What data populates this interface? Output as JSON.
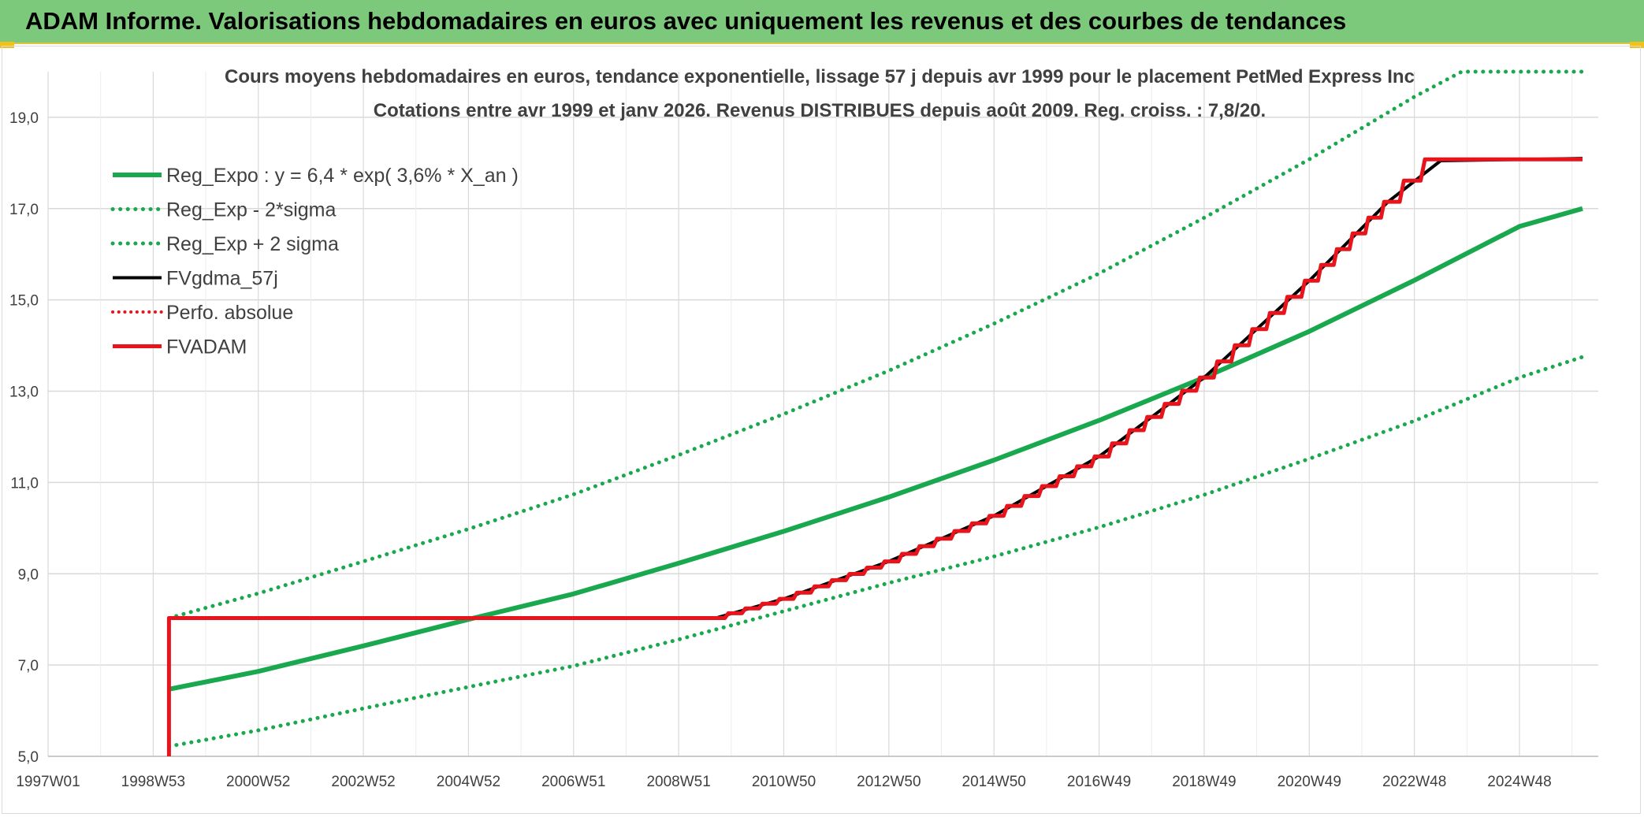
{
  "banner": {
    "title": "ADAM Informe. Valorisations hebdomadaires en euros avec uniquement les revenus et des courbes de tendances"
  },
  "colors": {
    "banner_bg": "#7dc97b",
    "green": "#1aa84f",
    "red": "#e8141c",
    "black": "#000000",
    "grid": "#d9d9d9"
  },
  "chart_data": {
    "type": "line",
    "title_line1": "Cours moyens hebdomadaires en euros, tendance exponentielle, lissage 57 j depuis avr 1999 pour le placement PetMed Express Inc",
    "title_line2": "Cotations entre avr 1999 et janv 2026. Revenus DISTRIBUES depuis août 2009. Reg. croiss. : 7,8/20.",
    "x_unit": "years",
    "xlim": [
      1997.0,
      2026.5
    ],
    "ylim": [
      5.0,
      20.0
    ],
    "yticks": [
      5.0,
      7.0,
      9.0,
      11.0,
      13.0,
      15.0,
      17.0,
      19.0
    ],
    "ytick_labels": [
      "5,0",
      "7,0",
      "9,0",
      "11,0",
      "13,0",
      "15,0",
      "17,0",
      "19,0"
    ],
    "xticks": [
      1997.0,
      1999.0,
      2001.0,
      2003.0,
      2005.0,
      2007.0,
      2009.0,
      2011.0,
      2013.0,
      2015.0,
      2017.0,
      2019.0,
      2021.0,
      2023.0,
      2025.0
    ],
    "xtick_labels": [
      "1997W01",
      "1998W53",
      "2000W52",
      "2002W52",
      "2004W52",
      "2006W51",
      "2008W51",
      "2010W50",
      "2012W50",
      "2014W50",
      "2016W49",
      "2018W49",
      "2020W49",
      "2022W48",
      "2024W48"
    ],
    "legend_position": "top-left",
    "grid": true,
    "series": [
      {
        "name": "Reg_Expo : y = 6,4 * exp( 3,6% *  X_an )",
        "color": "#1aa84f",
        "style": "solid",
        "width": 6,
        "points": [
          [
            1999.3,
            6.47
          ],
          [
            2001.0,
            6.86
          ],
          [
            2003.0,
            7.42
          ],
          [
            2005.0,
            8.0
          ],
          [
            2007.0,
            8.56
          ],
          [
            2009.0,
            9.23
          ],
          [
            2011.0,
            9.93
          ],
          [
            2013.0,
            10.68
          ],
          [
            2015.0,
            11.49
          ],
          [
            2017.0,
            12.36
          ],
          [
            2019.0,
            13.3
          ],
          [
            2021.0,
            14.31
          ],
          [
            2023.0,
            15.43
          ],
          [
            2025.0,
            16.61
          ],
          [
            2026.2,
            17.0
          ]
        ]
      },
      {
        "name": "Reg_Exp - 2*sigma",
        "color": "#1aa84f",
        "style": "dotted",
        "width": 5,
        "points": [
          [
            1999.3,
            5.22
          ],
          [
            2001.0,
            5.57
          ],
          [
            2003.0,
            6.05
          ],
          [
            2005.0,
            6.52
          ],
          [
            2007.0,
            6.98
          ],
          [
            2009.0,
            7.56
          ],
          [
            2011.0,
            8.18
          ],
          [
            2013.0,
            8.8
          ],
          [
            2015.0,
            9.38
          ],
          [
            2017.0,
            10.02
          ],
          [
            2019.0,
            10.73
          ],
          [
            2021.0,
            11.52
          ],
          [
            2023.0,
            12.35
          ],
          [
            2025.0,
            13.3
          ],
          [
            2026.2,
            13.75
          ]
        ]
      },
      {
        "name": "Reg_Exp + 2 sigma",
        "color": "#1aa84f",
        "style": "dotted",
        "width": 5,
        "points": [
          [
            1999.3,
            8.03
          ],
          [
            2001.0,
            8.57
          ],
          [
            2003.0,
            9.27
          ],
          [
            2005.0,
            9.98
          ],
          [
            2007.0,
            10.74
          ],
          [
            2009.0,
            11.6
          ],
          [
            2011.0,
            12.5
          ],
          [
            2013.0,
            13.45
          ],
          [
            2015.0,
            14.48
          ],
          [
            2017.0,
            15.58
          ],
          [
            2019.0,
            16.8
          ],
          [
            2021.0,
            18.08
          ],
          [
            2023.0,
            19.45
          ],
          [
            2023.9,
            20.0
          ],
          [
            2026.2,
            20.0
          ]
        ]
      },
      {
        "name": "FVgdma_57j",
        "color": "#000000",
        "style": "solid",
        "width": 4,
        "points": [
          [
            1999.3,
            5.0
          ],
          [
            1999.3,
            8.03
          ],
          [
            2009.7,
            8.03
          ],
          [
            2011.0,
            8.45
          ],
          [
            2013.0,
            9.27
          ],
          [
            2015.0,
            10.27
          ],
          [
            2017.0,
            11.57
          ],
          [
            2019.0,
            13.3
          ],
          [
            2021.0,
            15.42
          ],
          [
            2022.5,
            17.15
          ],
          [
            2023.5,
            18.05
          ],
          [
            2026.2,
            18.1
          ]
        ]
      },
      {
        "name": "Perfo. absolue",
        "color": "#e8141c",
        "style": "dotted",
        "width": 4,
        "points": []
      },
      {
        "name": "FVADAM",
        "color": "#e8141c",
        "style": "solid",
        "width": 5,
        "stepped": true,
        "points": [
          [
            1999.3,
            5.0
          ],
          [
            1999.3,
            8.03
          ],
          [
            2009.7,
            8.03
          ],
          [
            2011.0,
            8.45
          ],
          [
            2013.0,
            9.27
          ],
          [
            2015.0,
            10.27
          ],
          [
            2017.0,
            11.57
          ],
          [
            2019.0,
            13.3
          ],
          [
            2021.0,
            15.42
          ],
          [
            2022.5,
            17.15
          ],
          [
            2023.3,
            18.08
          ],
          [
            2026.2,
            18.08
          ]
        ]
      }
    ]
  }
}
